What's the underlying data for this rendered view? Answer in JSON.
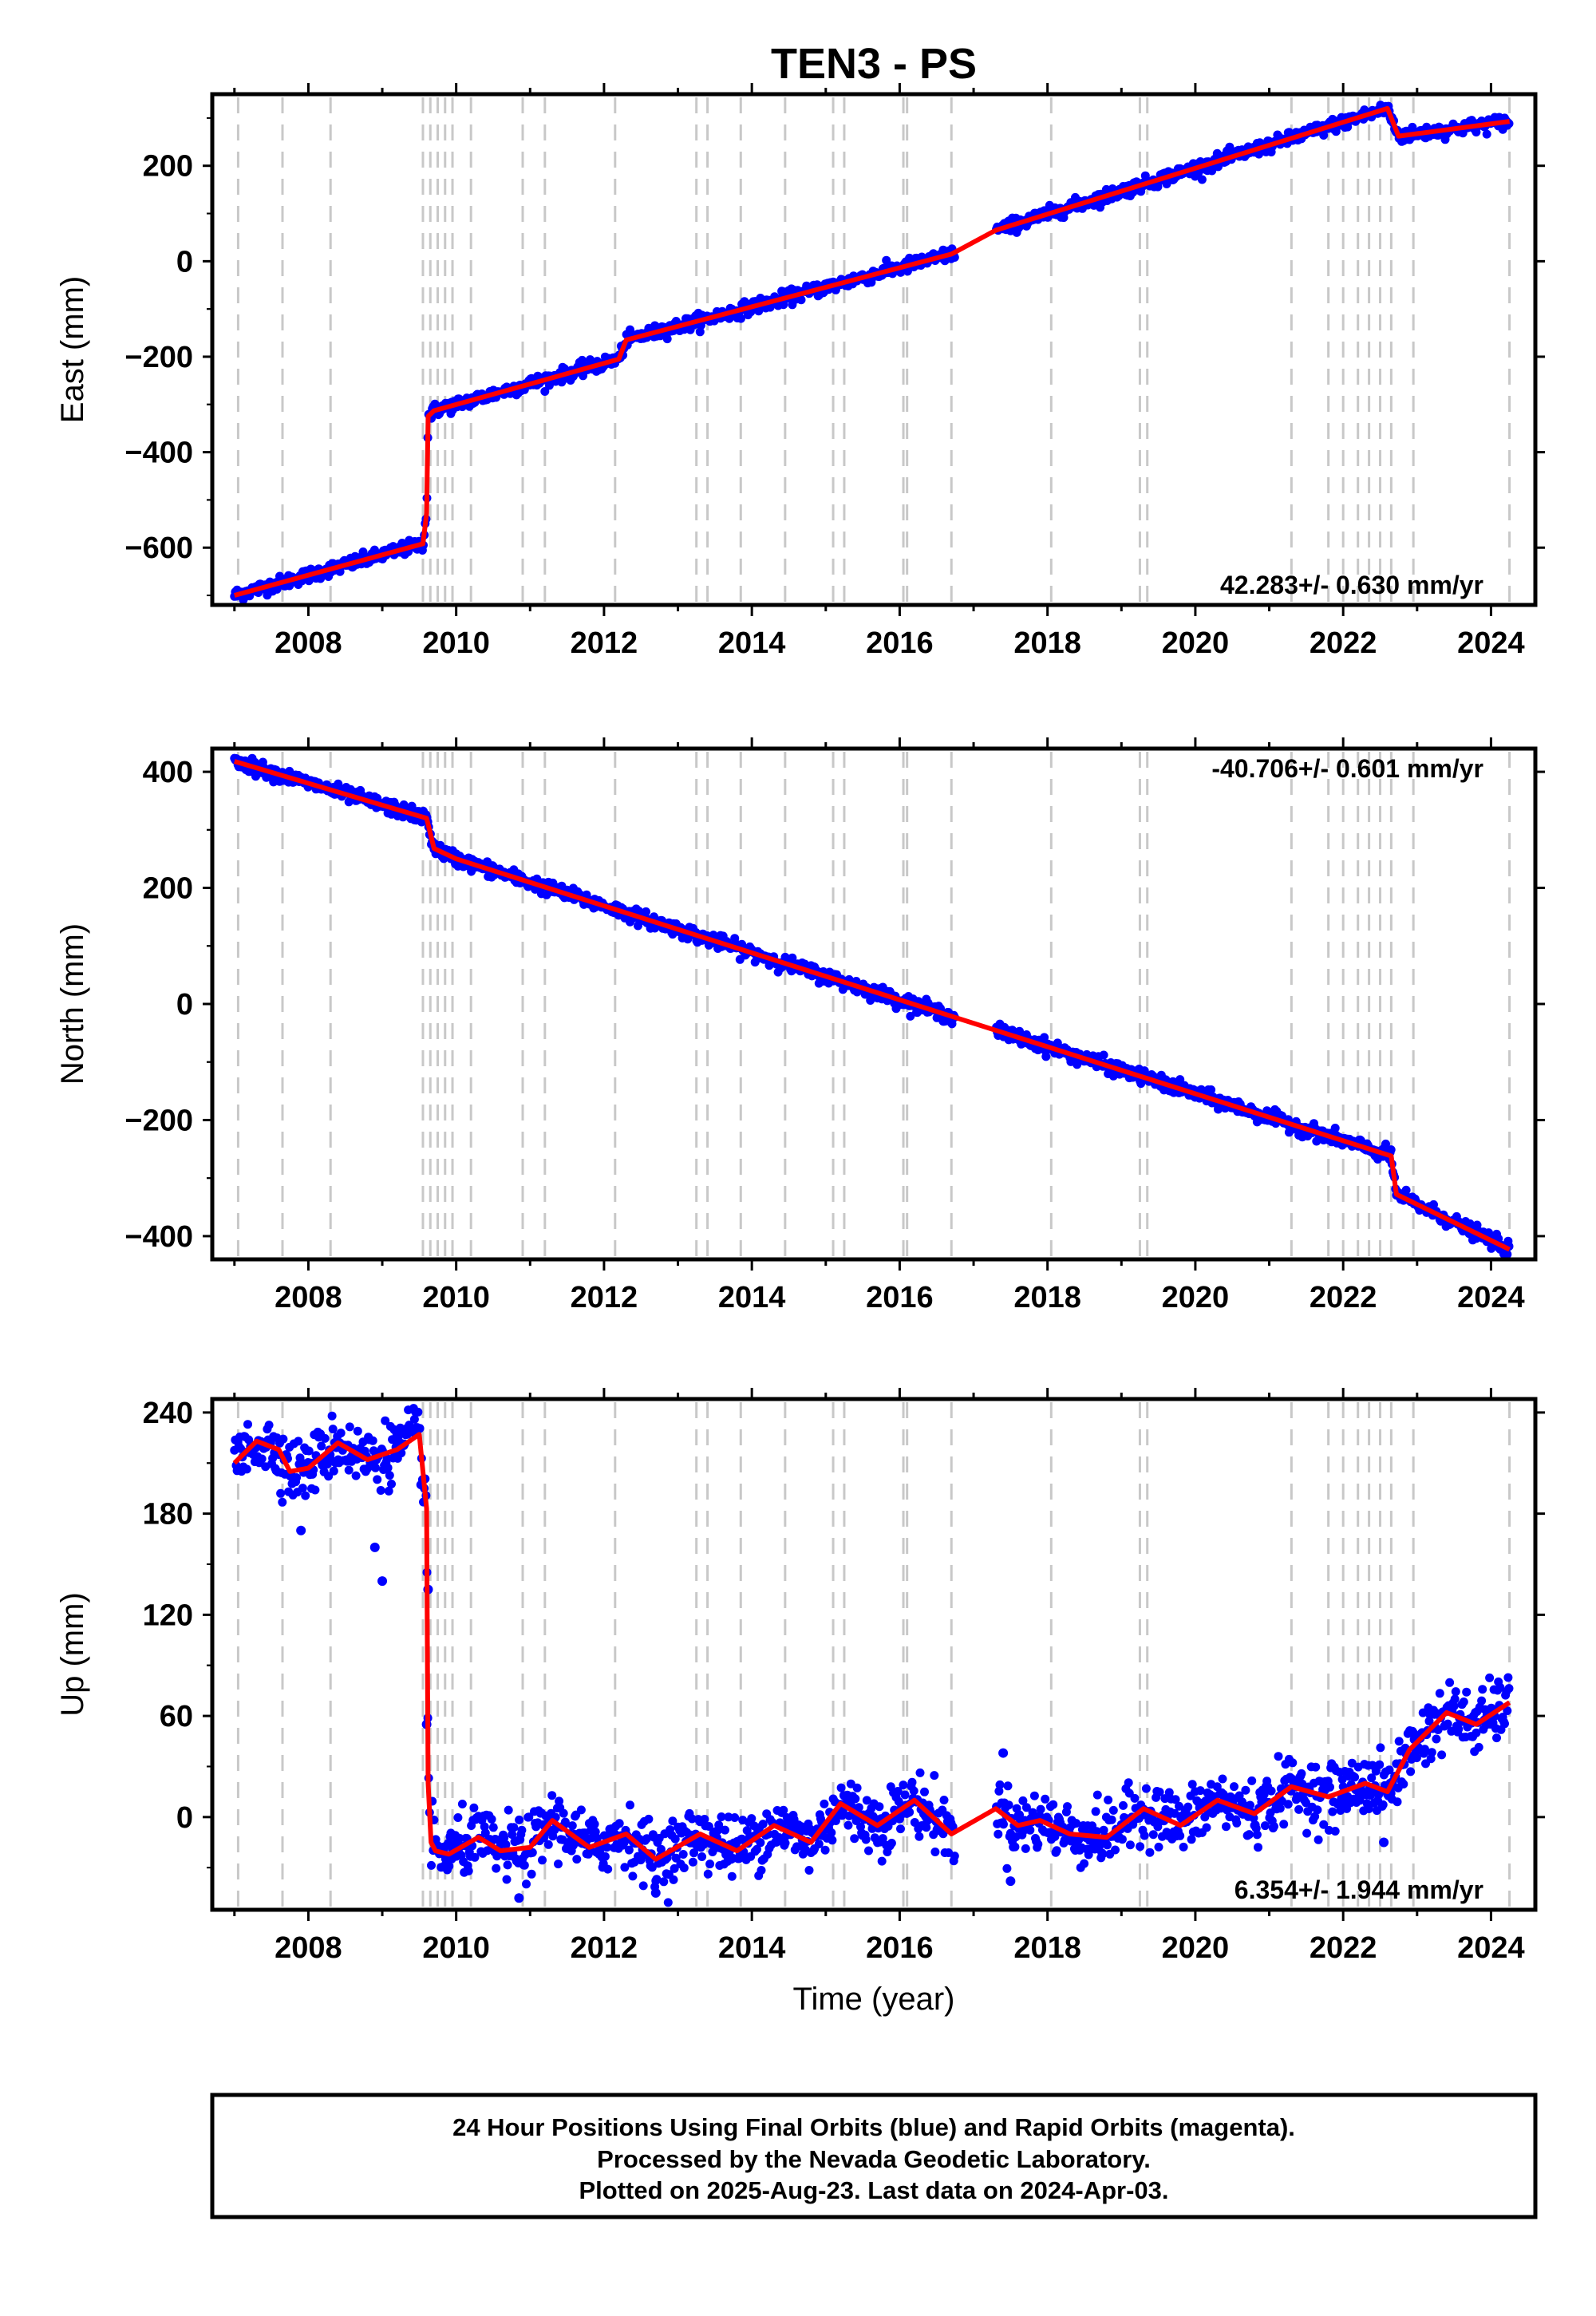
{
  "title": "TEN3 - PS",
  "xlabel": "Time (year)",
  "footer": {
    "line1": "24 Hour Positions Using Final Orbits (blue) and Rapid Orbits (magenta).",
    "line2": "Processed by the Nevada Geodetic Laboratory.",
    "line3": "Plotted on 2025-Aug-23. Last data on 2024-Apr-03."
  },
  "colors": {
    "points": "#0000ff",
    "model": "#ff0000",
    "event_lines": "#c8c8c8",
    "frame": "#000000"
  },
  "chart_data": [
    {
      "type": "scatter",
      "name": "east",
      "ylabel": "East (mm)",
      "xlim": [
        2006.7,
        2024.6
      ],
      "ylim": [
        -720,
        350
      ],
      "x_ticks": [
        2008,
        2010,
        2012,
        2014,
        2016,
        2018,
        2020,
        2022,
        2024
      ],
      "y_ticks": [
        -600,
        -400,
        -200,
        0,
        200
      ],
      "y_tick_labels": [
        "−600",
        "−400",
        "−200",
        "0",
        "200"
      ],
      "rate_text": "42.283+/- 0.630 mm/yr",
      "rate_placement": "bottom-right",
      "model": {
        "x": [
          2007.0,
          2009.55,
          2009.6,
          2009.62,
          2009.7,
          2011.0,
          2012.2,
          2012.3,
          2016.7,
          2017.3,
          2022.6,
          2022.75,
          2024.25
        ],
        "y": [
          -700,
          -592,
          -528,
          -325,
          -313,
          -257,
          -205,
          -165,
          15,
          65,
          320,
          262,
          293
        ]
      },
      "outliers": [],
      "noise": 7,
      "gaps": [
        [
          2016.75,
          2017.3
        ]
      ]
    },
    {
      "type": "scatter",
      "name": "north",
      "ylabel": "North (mm)",
      "xlim": [
        2006.7,
        2024.6
      ],
      "ylim": [
        -440,
        440
      ],
      "x_ticks": [
        2008,
        2010,
        2012,
        2014,
        2016,
        2018,
        2020,
        2022,
        2024
      ],
      "y_ticks": [
        -400,
        -200,
        0,
        200,
        400
      ],
      "y_tick_labels": [
        "−400",
        "−200",
        "0",
        "200",
        "400"
      ],
      "rate_text": "-40.706+/- 0.601 mm/yr",
      "rate_placement": "top-right",
      "model": {
        "x": [
          2007.0,
          2009.6,
          2009.7,
          2010.0,
          2022.65,
          2022.72,
          2024.25
        ],
        "y": [
          418,
          320,
          268,
          250,
          -262,
          -328,
          -423
        ]
      },
      "outliers": [],
      "noise": 6,
      "gaps": [
        [
          2016.75,
          2017.3
        ]
      ]
    },
    {
      "type": "scatter",
      "name": "up",
      "ylabel": "Up (mm)",
      "xlim": [
        2006.7,
        2024.6
      ],
      "ylim": [
        -55,
        248
      ],
      "x_ticks": [
        2008,
        2010,
        2012,
        2014,
        2016,
        2018,
        2020,
        2022,
        2024
      ],
      "y_ticks": [
        0,
        60,
        120,
        180,
        240
      ],
      "y_tick_labels": [
        "0",
        "60",
        "120",
        "180",
        "240"
      ],
      "rate_text": "6.354+/- 1.944 mm/yr",
      "rate_placement": "bottom-right",
      "model": {
        "x": [
          2007.0,
          2007.3,
          2007.6,
          2007.75,
          2008.0,
          2008.4,
          2008.8,
          2009.2,
          2009.5,
          2009.6,
          2009.62,
          2009.66,
          2009.72,
          2009.9,
          2010.3,
          2010.6,
          2011.0,
          2011.3,
          2011.8,
          2012.3,
          2012.7,
          2013.3,
          2013.8,
          2014.3,
          2014.8,
          2015.2,
          2015.7,
          2016.2,
          2016.7,
          2017.3,
          2017.6,
          2017.9,
          2018.3,
          2018.8,
          2019.3,
          2019.8,
          2020.3,
          2020.8,
          2021.3,
          2021.8,
          2022.3,
          2022.6,
          2022.9,
          2023.4,
          2023.8,
          2024.25
        ],
        "y": [
          210,
          223,
          218,
          205,
          207,
          222,
          212,
          218,
          227,
          183,
          20,
          -15,
          -20,
          -22,
          -12,
          -20,
          -18,
          -2,
          -18,
          -10,
          -25,
          -10,
          -20,
          -5,
          -15,
          8,
          -5,
          10,
          -10,
          5,
          -5,
          -2,
          -10,
          -12,
          5,
          -5,
          10,
          2,
          18,
          12,
          20,
          15,
          40,
          62,
          55,
          68
        ]
      },
      "outliers": [
        [
          2007.9,
          170
        ],
        [
          2008.9,
          160
        ],
        [
          2009.0,
          140
        ],
        [
          2009.62,
          135
        ],
        [
          2009.6,
          55
        ],
        [
          2010.85,
          -48
        ],
        [
          2012.7,
          -45
        ],
        [
          2017.4,
          38
        ],
        [
          2017.5,
          -38
        ],
        [
          2022.55,
          -15
        ]
      ],
      "noise": 9,
      "gaps": [
        [
          2016.75,
          2017.3
        ],
        [
          2009.64,
          2009.66
        ]
      ]
    }
  ],
  "event_lines_years": [
    2007.05,
    2007.65,
    2008.3,
    2009.55,
    2009.65,
    2009.75,
    2009.85,
    2009.95,
    2010.2,
    2010.9,
    2011.2,
    2012.15,
    2013.25,
    2013.4,
    2013.85,
    2014.45,
    2015.1,
    2015.25,
    2016.05,
    2016.1,
    2016.7,
    2018.05,
    2019.25,
    2019.35,
    2021.3,
    2021.8,
    2022.0,
    2022.2,
    2022.35,
    2022.5,
    2022.65,
    2022.95,
    2024.25
  ]
}
